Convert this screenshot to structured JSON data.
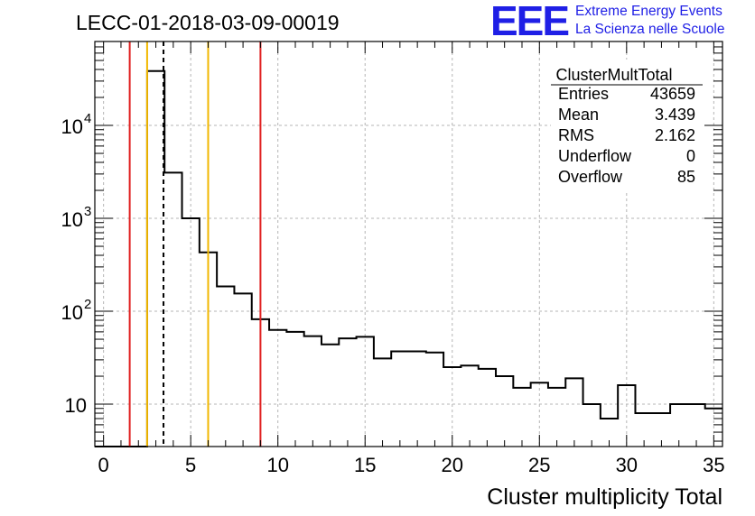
{
  "run_title": "LECC-01-2018-03-09-00019",
  "logo": {
    "acronym": "EEE",
    "line1": "Extreme Energy Events",
    "line2": "La Scienza nelle Scuole",
    "color": "#1f1fe6"
  },
  "stats": {
    "name": "ClusterMultTotal",
    "rows": [
      {
        "label": "Entries",
        "value": "43659"
      },
      {
        "label": "Mean",
        "value": "3.439"
      },
      {
        "label": "RMS",
        "value": "2.162"
      },
      {
        "label": "Underflow",
        "value": "0"
      },
      {
        "label": "Overflow",
        "value": "85"
      }
    ]
  },
  "chart_data": {
    "type": "histogram",
    "xlabel": "Cluster multiplicity Total",
    "ylabel": "",
    "xlim": [
      -0.5,
      35.5
    ],
    "ylim": [
      3.5,
      80000
    ],
    "ylog": true,
    "grid": true,
    "bin_edges": [
      -0.5,
      0.5,
      1.5,
      2.5,
      3.5,
      4.5,
      5.5,
      6.5,
      7.5,
      8.5,
      9.5,
      10.5,
      11.5,
      12.5,
      13.5,
      14.5,
      15.5,
      16.5,
      17.5,
      18.5,
      19.5,
      20.5,
      21.5,
      22.5,
      23.5,
      24.5,
      25.5,
      26.5,
      27.5,
      28.5,
      29.5,
      30.5,
      31.5,
      32.5,
      33.5,
      34.5,
      35.5
    ],
    "values": [
      0,
      0,
      0,
      38500,
      3100,
      1000,
      430,
      185,
      155,
      82,
      63,
      60,
      54,
      44,
      51,
      53,
      31,
      37,
      37,
      36,
      25,
      26,
      24,
      20,
      15,
      17,
      15,
      19,
      10,
      7,
      16,
      8,
      8,
      10,
      10,
      9
    ],
    "x_ticks": [
      0,
      5,
      10,
      15,
      20,
      25,
      30,
      35
    ],
    "y_ticks": [
      {
        "value": 10,
        "label": "10"
      },
      {
        "value": 100,
        "label": "10",
        "exp": "2"
      },
      {
        "value": 1000,
        "label": "10",
        "exp": "3"
      },
      {
        "value": 10000,
        "label": "10",
        "exp": "4"
      }
    ],
    "vertical_lines": [
      {
        "x": 1.5,
        "color": "#e02020",
        "style": "solid"
      },
      {
        "x": 2.5,
        "color": "#f2b800",
        "style": "solid"
      },
      {
        "x": 3.439,
        "color": "#000000",
        "style": "dashed"
      },
      {
        "x": 6.0,
        "color": "#f2b800",
        "style": "solid"
      },
      {
        "x": 9.0,
        "color": "#e02020",
        "style": "solid"
      }
    ]
  }
}
